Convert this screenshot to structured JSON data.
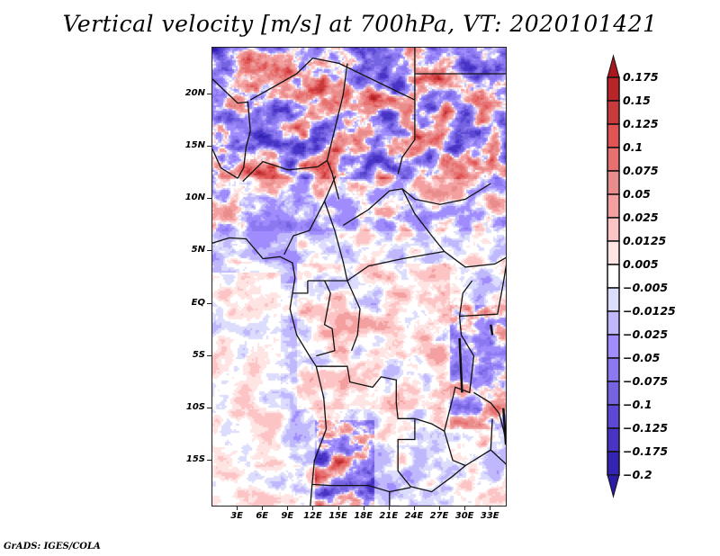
{
  "chart_data": {
    "type": "heatmap",
    "title": "Vertical velocity [m/s] at 700hPa, VT: 2020101421",
    "variable": "Vertical velocity",
    "units": "m/s",
    "level": "700hPa",
    "valid_time": "2020101421",
    "xlabel": "",
    "ylabel": "",
    "x_range_deg": [
      0,
      35
    ],
    "y_range_deg": [
      -19.5,
      24.5
    ],
    "x_ticks": [
      "3E",
      "6E",
      "9E",
      "12E",
      "15E",
      "18E",
      "21E",
      "24E",
      "27E",
      "30E",
      "33E"
    ],
    "x_tick_values": [
      3,
      6,
      9,
      12,
      15,
      18,
      21,
      24,
      27,
      30,
      33
    ],
    "y_ticks": [
      "20N",
      "15N",
      "10N",
      "5N",
      "EQ",
      "5S",
      "10S",
      "15S"
    ],
    "y_tick_values": [
      20,
      15,
      10,
      5,
      0,
      -5,
      -10,
      -15
    ],
    "colorbar": {
      "levels": [
        "0.175",
        "0.15",
        "0.125",
        "0.1",
        "0.075",
        "0.05",
        "0.025",
        "0.0125",
        "0.005",
        "−0.005",
        "−0.0125",
        "−0.025",
        "−0.05",
        "−0.075",
        "−0.1",
        "−0.125",
        "−0.175",
        "−0.2"
      ],
      "colors": [
        "#a8181c",
        "#b82428",
        "#c83a3c",
        "#e05454",
        "#e87070",
        "#e88c8c",
        "#f4a0a0",
        "#fcc4c4",
        "#ffe4e4",
        "#ffffff",
        "#dcdcfc",
        "#c0b8fc",
        "#a08cfc",
        "#8c78f0",
        "#7464e0",
        "#5c48d4",
        "#4834c4",
        "#3424b4",
        "#2c1ca4"
      ],
      "extend": "both"
    },
    "regions_summary": [
      {
        "area": "Sahara/Niger/Chad north of 12N",
        "pattern": "strong mixed ascent (red, up to >0.175) and descent (blue)"
      },
      {
        "area": "Gulf of Guinea / Atlantic near equator",
        "pattern": "weak values, light pink and light blue"
      },
      {
        "area": "Congo basin",
        "pattern": "weak positive (light red) with small-scale noise"
      },
      {
        "area": "Angola highlands ~12-18S, 13-17E",
        "pattern": "strong dipoles, dark red and dark blue"
      },
      {
        "area": "East African rift ~29-33E",
        "pattern": "strong red along rift, blue flanks"
      }
    ]
  },
  "footer": {
    "credit": "GrADS: IGES/COLA"
  }
}
